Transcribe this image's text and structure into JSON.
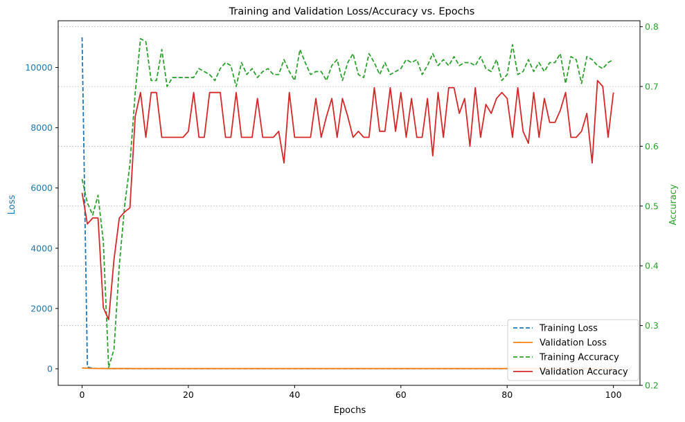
{
  "chart_data": {
    "type": "line",
    "title": "Training and Validation Loss/Accuracy vs. Epochs",
    "xlabel": "Epochs",
    "ylabel_left": "Loss",
    "ylabel_right": "Accuracy",
    "xlim": [
      -4.5,
      105
    ],
    "ylim_left": [
      -550,
      11550
    ],
    "ylim_right": [
      0.2,
      0.81
    ],
    "x_ticks": [
      0,
      20,
      40,
      60,
      80,
      100
    ],
    "y_left_ticks": [
      0,
      2000,
      4000,
      6000,
      8000,
      10000
    ],
    "y_right_ticks": [
      0.2,
      0.3,
      0.4,
      0.5,
      0.6,
      0.7,
      0.8
    ],
    "grid": "horizontal dotted at right-axis ticks",
    "legend_position": "lower-right",
    "colors": {
      "training_loss": "#1f77b4",
      "validation_loss": "#ff7f0e",
      "training_accuracy": "#2ca02c",
      "validation_accuracy": "#d62728",
      "left_axis": "#1f77b4",
      "right_axis": "#2ca02c"
    },
    "series": [
      {
        "name": "Training Loss",
        "axis": "left",
        "style": "dashed",
        "color": "#1f77b4",
        "x": [
          0,
          1,
          2,
          3,
          4,
          5,
          6,
          7,
          8,
          9,
          10,
          15,
          20,
          30,
          40,
          50,
          60,
          70,
          80,
          90,
          100
        ],
        "values": [
          11000,
          60,
          15,
          10,
          8,
          6,
          5,
          5,
          5,
          5,
          4,
          4,
          4,
          4,
          4,
          4,
          4,
          4,
          4,
          4,
          4
        ]
      },
      {
        "name": "Validation Loss",
        "axis": "left",
        "style": "solid",
        "color": "#ff7f0e",
        "x": [
          0,
          1,
          2,
          3,
          5,
          10,
          20,
          30,
          40,
          50,
          60,
          70,
          80,
          90,
          100
        ],
        "values": [
          25,
          18,
          12,
          10,
          8,
          8,
          8,
          8,
          8,
          8,
          8,
          8,
          8,
          8,
          8
        ]
      },
      {
        "name": "Training Accuracy",
        "axis": "right",
        "style": "dashed",
        "color": "#2ca02c",
        "x": [
          0,
          1,
          2,
          3,
          4,
          5,
          6,
          7,
          8,
          9,
          10,
          11,
          12,
          13,
          14,
          15,
          16,
          17,
          18,
          19,
          20,
          21,
          22,
          23,
          24,
          25,
          26,
          27,
          28,
          29,
          30,
          31,
          32,
          33,
          34,
          35,
          36,
          37,
          38,
          39,
          40,
          41,
          42,
          43,
          44,
          45,
          46,
          47,
          48,
          49,
          50,
          51,
          52,
          53,
          54,
          55,
          56,
          57,
          58,
          59,
          60,
          61,
          62,
          63,
          64,
          65,
          66,
          67,
          68,
          69,
          70,
          71,
          72,
          73,
          74,
          75,
          76,
          77,
          78,
          79,
          80,
          81,
          82,
          83,
          84,
          85,
          86,
          87,
          88,
          89,
          90,
          91,
          92,
          93,
          94,
          95,
          96,
          97,
          98,
          99,
          100
        ],
        "values": [
          0.545,
          0.505,
          0.485,
          0.518,
          0.44,
          0.23,
          0.26,
          0.4,
          0.5,
          0.57,
          0.69,
          0.78,
          0.775,
          0.71,
          0.71,
          0.762,
          0.7,
          0.715,
          0.715,
          0.715,
          0.715,
          0.715,
          0.73,
          0.725,
          0.72,
          0.71,
          0.73,
          0.74,
          0.735,
          0.7,
          0.74,
          0.72,
          0.73,
          0.715,
          0.725,
          0.73,
          0.72,
          0.72,
          0.745,
          0.725,
          0.71,
          0.762,
          0.74,
          0.72,
          0.725,
          0.725,
          0.71,
          0.735,
          0.745,
          0.71,
          0.74,
          0.755,
          0.72,
          0.715,
          0.755,
          0.74,
          0.72,
          0.74,
          0.72,
          0.725,
          0.73,
          0.745,
          0.74,
          0.745,
          0.72,
          0.735,
          0.755,
          0.735,
          0.745,
          0.735,
          0.75,
          0.735,
          0.74,
          0.74,
          0.735,
          0.75,
          0.73,
          0.725,
          0.745,
          0.71,
          0.72,
          0.77,
          0.72,
          0.725,
          0.745,
          0.725,
          0.74,
          0.725,
          0.74,
          0.74,
          0.755,
          0.705,
          0.75,
          0.745,
          0.705,
          0.75,
          0.745,
          0.735,
          0.73,
          0.74,
          0.745
        ]
      },
      {
        "name": "Validation Accuracy",
        "axis": "right",
        "style": "solid",
        "color": "#d62728",
        "x": [
          0,
          1,
          2,
          3,
          4,
          5,
          6,
          7,
          8,
          9,
          10,
          11,
          12,
          13,
          14,
          15,
          16,
          17,
          18,
          19,
          20,
          21,
          22,
          23,
          24,
          25,
          26,
          27,
          28,
          29,
          30,
          31,
          32,
          33,
          34,
          35,
          36,
          37,
          38,
          39,
          40,
          41,
          42,
          43,
          44,
          45,
          46,
          47,
          48,
          49,
          50,
          51,
          52,
          53,
          54,
          55,
          56,
          57,
          58,
          59,
          60,
          61,
          62,
          63,
          64,
          65,
          66,
          67,
          68,
          69,
          70,
          71,
          72,
          73,
          74,
          75,
          76,
          77,
          78,
          79,
          80,
          81,
          82,
          83,
          84,
          85,
          86,
          87,
          88,
          89,
          90,
          91,
          92,
          93,
          94,
          95,
          96,
          97,
          98,
          99,
          100
        ],
        "values": [
          0.522,
          0.47,
          0.48,
          0.48,
          0.33,
          0.31,
          0.41,
          0.48,
          0.49,
          0.497,
          0.65,
          0.69,
          0.615,
          0.69,
          0.69,
          0.615,
          0.615,
          0.615,
          0.615,
          0.615,
          0.625,
          0.69,
          0.615,
          0.615,
          0.69,
          0.69,
          0.69,
          0.615,
          0.615,
          0.69,
          0.615,
          0.615,
          0.615,
          0.68,
          0.615,
          0.615,
          0.615,
          0.625,
          0.572,
          0.69,
          0.615,
          0.615,
          0.615,
          0.615,
          0.68,
          0.615,
          0.65,
          0.68,
          0.615,
          0.68,
          0.65,
          0.615,
          0.625,
          0.615,
          0.615,
          0.698,
          0.625,
          0.625,
          0.698,
          0.625,
          0.69,
          0.615,
          0.68,
          0.615,
          0.615,
          0.68,
          0.584,
          0.69,
          0.615,
          0.698,
          0.698,
          0.655,
          0.68,
          0.6,
          0.698,
          0.615,
          0.67,
          0.655,
          0.68,
          0.69,
          0.68,
          0.615,
          0.698,
          0.625,
          0.605,
          0.69,
          0.615,
          0.68,
          0.64,
          0.64,
          0.66,
          0.69,
          0.615,
          0.615,
          0.625,
          0.655,
          0.572,
          0.71,
          0.7,
          0.615,
          0.69
        ]
      }
    ]
  }
}
